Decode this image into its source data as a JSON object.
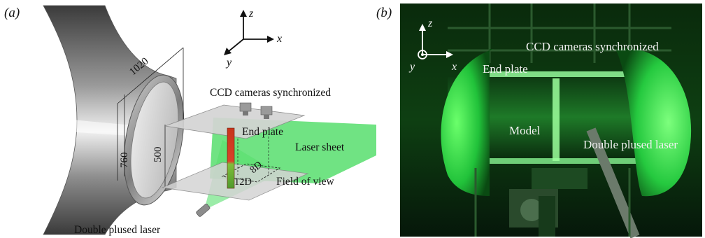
{
  "panel_a": {
    "label": "(a)",
    "dims": {
      "diameter": "1020",
      "height": "760",
      "gap": "500",
      "fov_width": "12D",
      "fov_depth": "8D"
    },
    "labels": {
      "cameras": "CCD cameras synchronized",
      "end_plate": "End plate",
      "laser_sheet": "Laser sheet",
      "field_of_view": "Field of view",
      "laser": "Double plused laser"
    },
    "axes": {
      "z": "z",
      "x": "x",
      "y": "y"
    }
  },
  "panel_b": {
    "label": "(b)",
    "axes": {
      "z": "z",
      "x": "x",
      "y": "y"
    },
    "labels": {
      "cameras": "CCD cameras synchronized",
      "end_plate": "End plate",
      "model": "Model",
      "laser": "Double plused laser"
    }
  },
  "colors": {
    "laser_green": "#3ddc57",
    "photo_dark": "#071a08",
    "photo_glow": "#2fff4a",
    "nozzle_dark": "#4a4a4a",
    "nozzle_light": "#e8e8e8",
    "plate_gray": "#d6d6d6",
    "model_red": "#d23a1e"
  }
}
